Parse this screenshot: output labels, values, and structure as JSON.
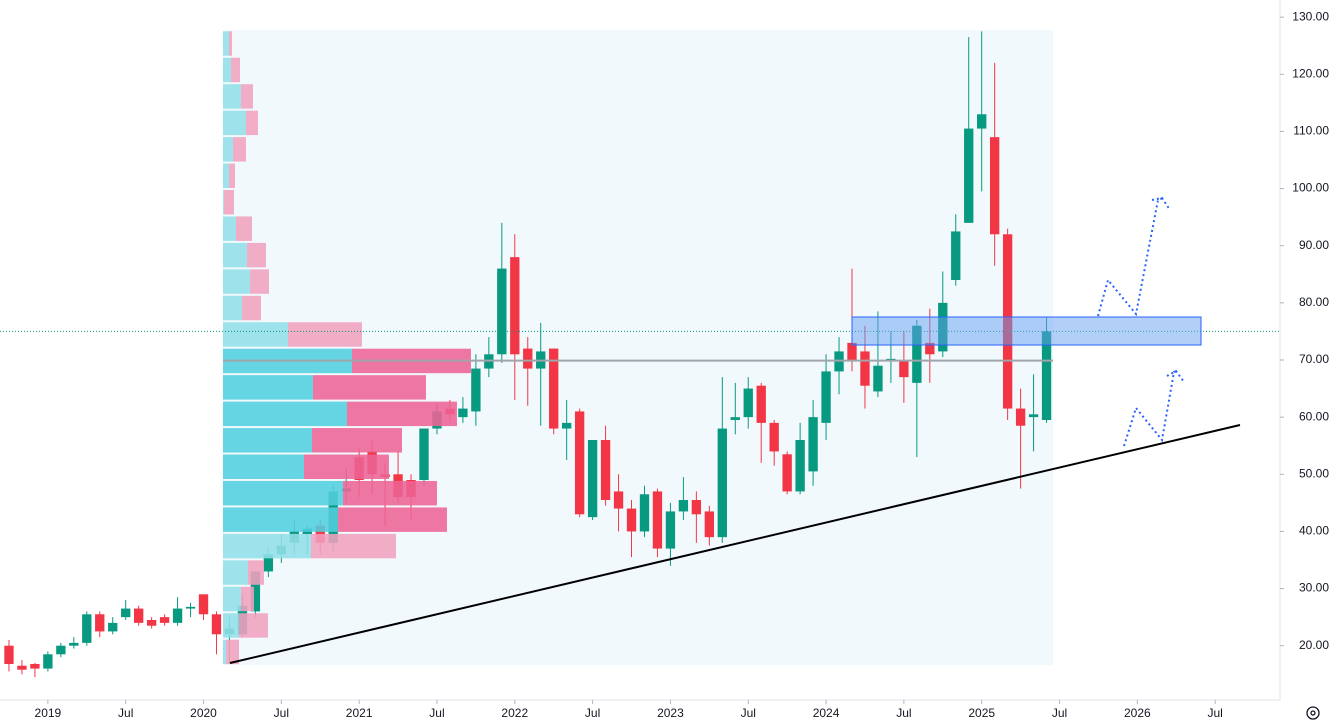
{
  "chart_data": {
    "type": "candlestick",
    "x": [
      "2018-10",
      "2018-11",
      "2018-12",
      "2019-01",
      "2019-02",
      "2019-03",
      "2019-04",
      "2019-05",
      "2019-06",
      "2019-07",
      "2019-08",
      "2019-09",
      "2019-10",
      "2019-11",
      "2019-12",
      "2020-01",
      "2020-02",
      "2020-03",
      "2020-04",
      "2020-05",
      "2020-06",
      "2020-07",
      "2020-08",
      "2020-09",
      "2020-10",
      "2020-11",
      "2020-12",
      "2021-01",
      "2021-02",
      "2021-03",
      "2021-04",
      "2021-05",
      "2021-06",
      "2021-07",
      "2021-08",
      "2021-09",
      "2021-10",
      "2021-11",
      "2021-12",
      "2022-01",
      "2022-02",
      "2022-03",
      "2022-04",
      "2022-05",
      "2022-06",
      "2022-07",
      "2022-08",
      "2022-09",
      "2022-10",
      "2022-11",
      "2022-12",
      "2023-01",
      "2023-02",
      "2023-03",
      "2023-04",
      "2023-05",
      "2023-06",
      "2023-07",
      "2023-08",
      "2023-09",
      "2023-10",
      "2023-11",
      "2023-12",
      "2024-01",
      "2024-02",
      "2024-03",
      "2024-04",
      "2024-05",
      "2024-06",
      "2024-07",
      "2024-08",
      "2024-09",
      "2024-10",
      "2024-11",
      "2024-12",
      "2025-01",
      "2025-02",
      "2025-03",
      "2025-04",
      "2025-05",
      "2025-06"
    ],
    "open": [
      20,
      16.5,
      16.8,
      16,
      18.5,
      20,
      20.5,
      25.5,
      22.5,
      25,
      26.5,
      24.5,
      25,
      24,
      26.5,
      29,
      25.5,
      22,
      22,
      26,
      33,
      36,
      38,
      39.5,
      41,
      38,
      47,
      53,
      54,
      50,
      50,
      49,
      49,
      58,
      61.5,
      60,
      61,
      68.5,
      71,
      88,
      72,
      68.5,
      72,
      58,
      61,
      42.5,
      56,
      47,
      44,
      40,
      47,
      37,
      43.5,
      45.5,
      43.5,
      39,
      59.5,
      60,
      65.5,
      59,
      53.5,
      47,
      50.5,
      59,
      68,
      73,
      71.5,
      64.5,
      70,
      70,
      66,
      73,
      71.5,
      84,
      94,
      110.5,
      109,
      92,
      61.5,
      60,
      59.5
    ],
    "high": [
      21,
      17.5,
      17,
      19,
      20.5,
      21.5,
      26,
      26,
      25,
      28,
      27,
      25,
      25.5,
      28.5,
      27.5,
      29,
      26,
      25,
      29,
      33,
      37,
      39.5,
      42,
      41,
      42,
      48,
      51,
      54.5,
      56,
      52,
      54,
      50,
      58,
      62.5,
      63,
      63.5,
      71,
      74,
      94,
      92,
      74,
      76.5,
      72,
      63,
      61.5,
      56,
      58.5,
      50,
      45.5,
      48,
      47.5,
      45,
      49.5,
      47,
      44.5,
      67,
      66,
      67,
      66,
      59.5,
      54,
      59,
      63,
      71,
      74,
      86,
      76,
      78.5,
      75,
      75,
      77,
      79,
      85.5,
      95.5,
      126.5,
      127.5,
      122,
      93,
      65,
      67.5,
      77.5
    ],
    "low": [
      15.5,
      15,
      14.5,
      15.5,
      18,
      19.5,
      20,
      21.5,
      22,
      24.5,
      23.5,
      23,
      23.5,
      23.5,
      25,
      24.5,
      18.5,
      16.8,
      21.5,
      25,
      32,
      34.5,
      36,
      36,
      36,
      36.5,
      45,
      46,
      46.5,
      41,
      45,
      42,
      48,
      57,
      59,
      59,
      58.5,
      67,
      69.5,
      63,
      62,
      58.5,
      57,
      52.5,
      42.5,
      42,
      44.5,
      40,
      35.5,
      39,
      35.5,
      34,
      42,
      38,
      37.5,
      38,
      57,
      58,
      52,
      51.5,
      46.5,
      46.5,
      48,
      56,
      64,
      68,
      61.5,
      63.5,
      66,
      62.5,
      53,
      66,
      70.5,
      83,
      94,
      99.5,
      86.5,
      59.5,
      47.5,
      54,
      59
    ],
    "close": [
      16.8,
      15.8,
      16,
      18.5,
      20,
      20.5,
      25.5,
      22.5,
      24,
      26.5,
      24,
      23.5,
      24,
      26.5,
      26.8,
      25.5,
      22,
      23,
      27,
      33,
      36,
      37.5,
      40,
      40.5,
      38,
      47,
      47.5,
      49,
      50,
      49.5,
      46,
      46,
      58,
      61,
      60.5,
      61.5,
      68.5,
      71,
      86,
      71,
      68.5,
      71.5,
      58,
      59,
      43,
      56,
      45.5,
      44,
      40,
      46.5,
      37,
      43.5,
      45.5,
      43,
      39,
      58,
      60,
      65,
      59,
      54,
      47,
      56,
      60,
      68,
      71.5,
      70,
      65.5,
      69,
      70.2,
      67,
      76,
      71,
      80,
      92.5,
      110.5,
      113,
      92,
      61.5,
      58.5,
      60.5,
      75
    ],
    "colors": {
      "up": "#089981",
      "down": "#f23645"
    },
    "last_price": 75.0,
    "ylim": [
      10.5,
      133
    ],
    "yticks": [
      {
        "value": 20,
        "label": "20.00"
      },
      {
        "value": 30,
        "label": "30.00"
      },
      {
        "value": 40,
        "label": "40.00"
      },
      {
        "value": 50,
        "label": "50.00"
      },
      {
        "value": 60,
        "label": "60.00"
      },
      {
        "value": 70,
        "label": "70.00"
      },
      {
        "value": 80,
        "label": "80.00"
      },
      {
        "value": 90,
        "label": "90.00"
      },
      {
        "value": 100,
        "label": "100.00"
      },
      {
        "value": 110,
        "label": "110.00"
      },
      {
        "value": 120,
        "label": "120.00"
      },
      {
        "value": 130,
        "label": "130.00"
      }
    ],
    "xlim": [
      "2018-09",
      "2026-12"
    ],
    "xticks": [
      {
        "value": "2019-01",
        "label": "2019"
      },
      {
        "value": "2019-07",
        "label": "Jul"
      },
      {
        "value": "2020-01",
        "label": "2020"
      },
      {
        "value": "2020-07",
        "label": "Jul"
      },
      {
        "value": "2021-01",
        "label": "2021"
      },
      {
        "value": "2021-07",
        "label": "Jul"
      },
      {
        "value": "2022-01",
        "label": "2022"
      },
      {
        "value": "2022-07",
        "label": "Jul"
      },
      {
        "value": "2023-01",
        "label": "2023"
      },
      {
        "value": "2023-07",
        "label": "Jul"
      },
      {
        "value": "2024-01",
        "label": "2024"
      },
      {
        "value": "2024-07",
        "label": "Jul"
      },
      {
        "value": "2025-01",
        "label": "2025"
      },
      {
        "value": "2025-07",
        "label": "Jul"
      },
      {
        "value": "2026-01",
        "label": "2026"
      },
      {
        "value": "2026-07",
        "label": "Jul"
      }
    ],
    "volume_profile": {
      "start": "2020-03",
      "end": "2025-06",
      "range": [
        16.6,
        127.7
      ],
      "up": [
        3,
        16,
        18,
        25,
        88,
        115,
        120,
        81,
        89,
        124,
        90,
        129,
        65,
        19,
        27,
        24,
        13,
        1,
        6,
        10,
        23,
        18,
        8,
        6
      ],
      "down": [
        13,
        29,
        13,
        16,
        85,
        109,
        94,
        85,
        90,
        110,
        113,
        119,
        74,
        19,
        19,
        19,
        16,
        10,
        6,
        13,
        12,
        12,
        9,
        3
      ],
      "value_area": [
        40.0,
        72.3
      ],
      "poc": 69.9,
      "colors": {
        "up": "#52cfe0",
        "down": "#ee6496",
        "up_outside": "#93e0ea",
        "down_outside": "#f2a2bf"
      }
    }
  }
}
